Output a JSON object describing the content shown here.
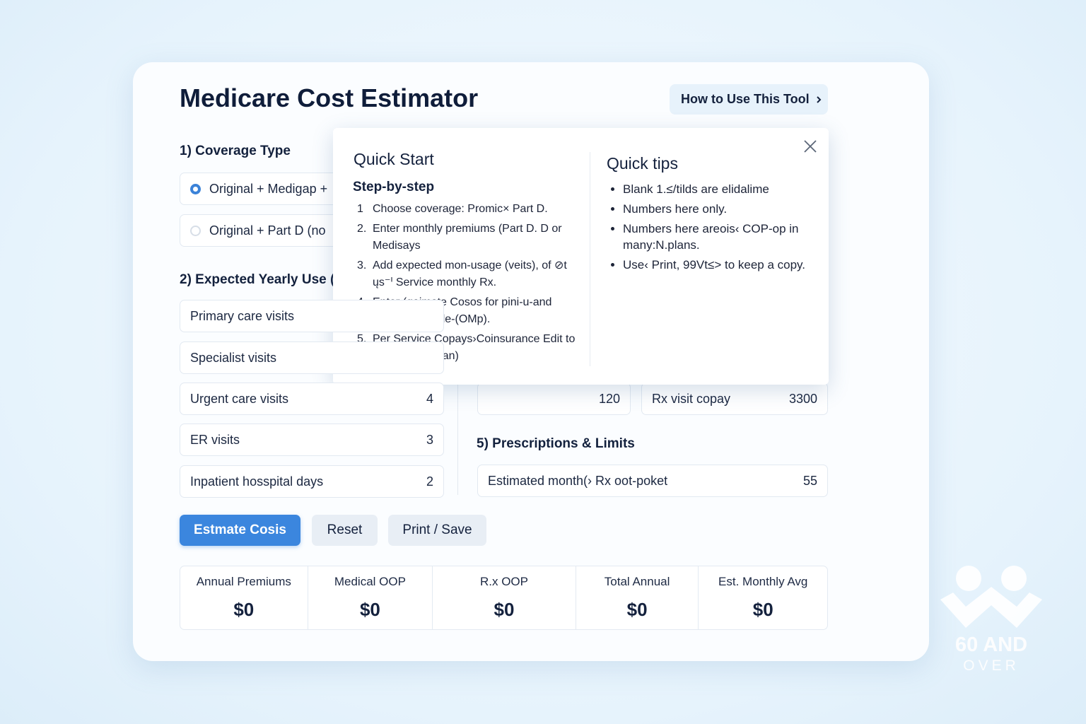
{
  "header": {
    "title": "Medicare Cost Estimator",
    "help_button": "How to Use This Tool"
  },
  "coverage": {
    "heading": "1) Coverage Type",
    "options": [
      "Original + Medigap +",
      "Original + Part D (no"
    ]
  },
  "usage": {
    "heading": "2) Expected Yearly Use (",
    "rows": [
      {
        "label": "Primary care visits"
      },
      {
        "label": "Specialist visits"
      },
      {
        "label": "Urgent care visits",
        "value": "4"
      },
      {
        "label": "ER visits",
        "value": "3"
      },
      {
        "label": "Inpatient hosspital days",
        "value": "2"
      }
    ]
  },
  "costs": {
    "fields": [
      {
        "value": "120"
      },
      {
        "label": "Rx visit copay",
        "value": "3300"
      }
    ]
  },
  "prescriptions": {
    "heading": "5) Prescriptions & Limits",
    "fields": [
      {
        "label": "Estimated month(› Rx oot-poket",
        "value": "55"
      }
    ]
  },
  "actions": [
    "Estmate Cosis",
    "Reset",
    "Print / Save"
  ],
  "summary": [
    {
      "label": "Annual Premiums",
      "value": "$0"
    },
    {
      "label": "Medical OOP",
      "value": "$0"
    },
    {
      "label": "R.x OOP",
      "value": "$0"
    },
    {
      "label": "Total Annual",
      "value": "$0"
    },
    {
      "label": "Est. Monthly Avg",
      "value": "$0"
    }
  ],
  "popup": {
    "quick_start": {
      "title": "Quick Start",
      "subtitle": "Step-by-step",
      "steps": [
        {
          "number": "1",
          "text": "Choose coverage: Promic× Part D."
        },
        {
          "number": "2.",
          "text": "Enter monthly premiums (Part D. D or Medisays"
        },
        {
          "number": "3.",
          "text": "Add expected mon-usage (veits), of ⊘t ųs⁻ᑊ Service monthly Rx."
        },
        {
          "number": "4.",
          "text": "Enter (qaimate Cosos for pini-u-and monthy: Detalle-(OMp)."
        },
        {
          "number": "5.",
          "text": "Per Service Copays›Coinsurance Edit to match your Dian)"
        }
      ]
    },
    "quick_tips": {
      "title": "Quick tips",
      "tips": [
        "Blank 1.≤/tilds are elidalime",
        "Numbers here only.",
        "Numbers here areois‹ COP-op in many:N.plans.",
        "Use‹ Print, 99Vt≤> to keep a copy."
      ]
    }
  },
  "logo": {
    "line1": "60 AND",
    "line2": "OVER"
  }
}
